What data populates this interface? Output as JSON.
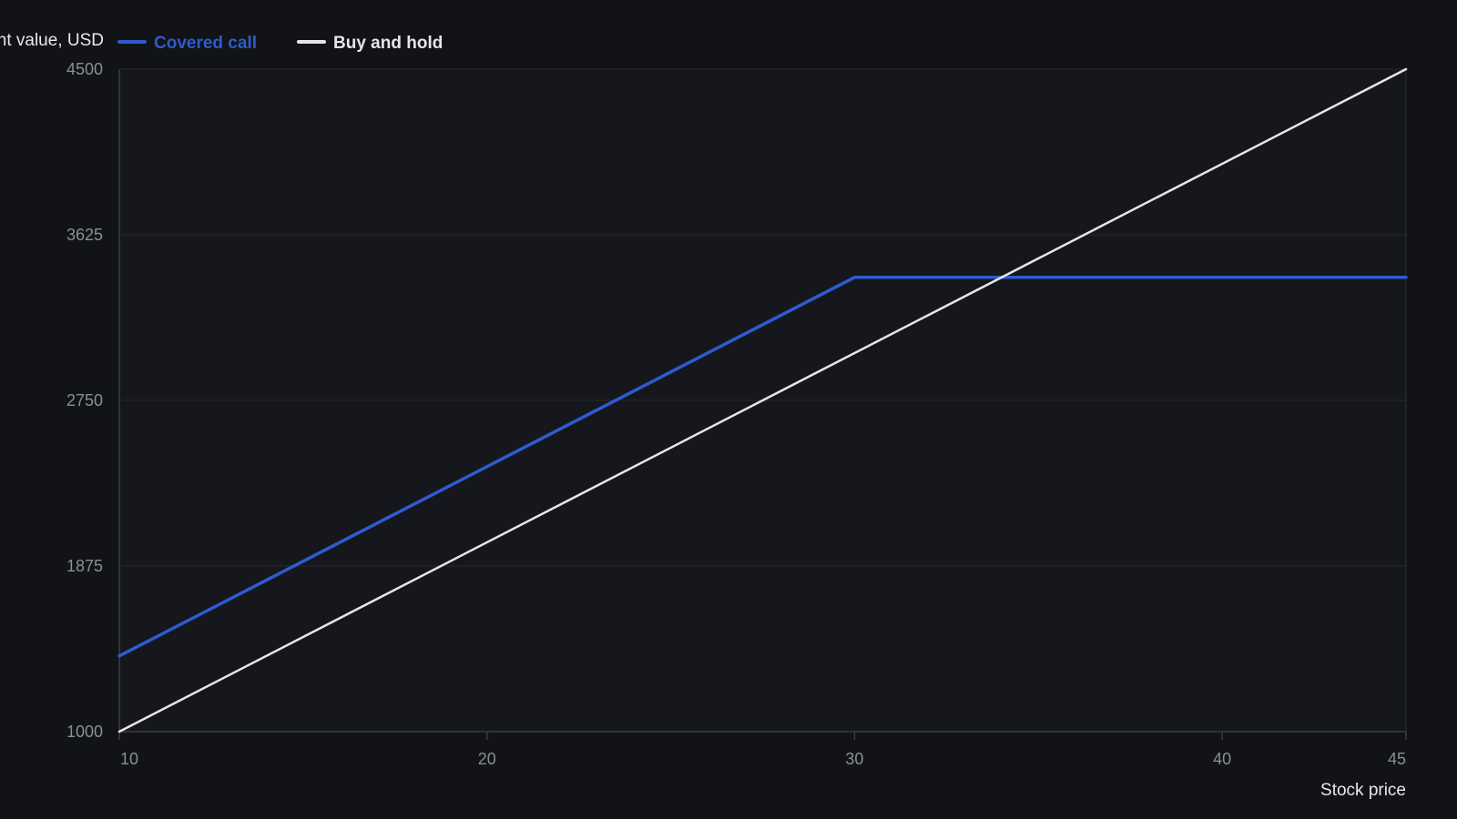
{
  "chart_data": {
    "type": "line",
    "xlabel": "Stock price",
    "ylabel": "Investment value, USD",
    "xlim": [
      10,
      45
    ],
    "ylim": [
      1000,
      4500
    ],
    "x_ticks": [
      10,
      20,
      30,
      40,
      45
    ],
    "y_ticks": [
      1000,
      1875,
      2750,
      3625,
      4500
    ],
    "grid": true,
    "legend_position": "top-left",
    "series": [
      {
        "name": "Covered call",
        "color": "#2f5bd0",
        "x": [
          10,
          30,
          45
        ],
        "y": [
          1400,
          3400,
          3400
        ]
      },
      {
        "name": "Buy and hold",
        "color": "#e6e6e6",
        "x": [
          10,
          45
        ],
        "y": [
          1000,
          4500
        ]
      }
    ]
  }
}
